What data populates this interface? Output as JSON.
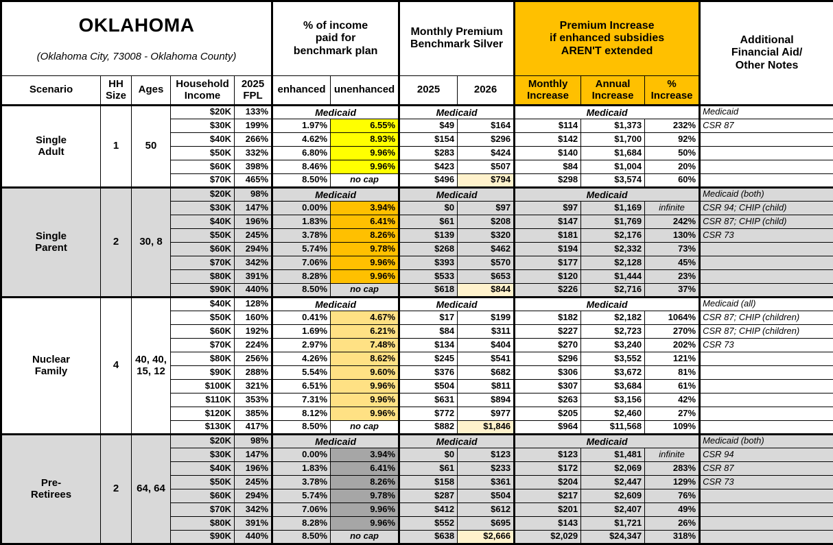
{
  "title_block": {
    "title": "OKLAHOMA",
    "subtitle": "(Oklahoma City, 73008 - Oklahoma County)"
  },
  "column_groups": {
    "income_pct": "% of income\npaid for\nbenchmark plan",
    "premium": "Monthly Premium\nBenchmark Silver",
    "increase": "Premium Increase\nif enhanced subsidies\nAREN'T extended",
    "notes": "Additional\nFinancial Aid/\nOther Notes"
  },
  "columns": {
    "scenario": "Scenario",
    "hh_size": "HH\nSize",
    "ages": "Ages",
    "income": "Household\nIncome",
    "fpl": "2025\nFPL",
    "enhanced": "enhanced",
    "unenhanced": "unenhanced",
    "y2025": "2025",
    "y2026": "2026",
    "monthly": "Monthly\nIncrease",
    "annual": "Annual\nIncrease",
    "pct": "%\nIncrease"
  },
  "medicaid_label": "Medicaid",
  "colors": {
    "accent_orange": "#FFC000",
    "highlight_yellow": "#FFFF00",
    "highlight_orange": "#FFC000",
    "highlight_amber": "#FFE184",
    "highlight_dark_gray": "#A6A6A6",
    "section_shade": "#D9D9D9",
    "cream_2026": "#FFF2CC"
  },
  "sections": [
    {
      "scenario": "Single\nAdult",
      "hh_size": "1",
      "ages": "50",
      "shaded": false,
      "highlight": "#FFFF00",
      "rows": [
        {
          "income": "$20K",
          "fpl": "133%",
          "medicaid": true,
          "note": "Medicaid"
        },
        {
          "income": "$30K",
          "fpl": "199%",
          "enh": "1.97%",
          "unenh": "6.55%",
          "p25": "$49",
          "p26": "$164",
          "mo": "$114",
          "yr": "$1,373",
          "pct": "232%",
          "note": "CSR 87"
        },
        {
          "income": "$40K",
          "fpl": "266%",
          "enh": "4.62%",
          "unenh": "8.93%",
          "p25": "$154",
          "p26": "$296",
          "mo": "$142",
          "yr": "$1,700",
          "pct": "92%",
          "note": ""
        },
        {
          "income": "$50K",
          "fpl": "332%",
          "enh": "6.80%",
          "unenh": "9.96%",
          "p25": "$283",
          "p26": "$424",
          "mo": "$140",
          "yr": "$1,684",
          "pct": "50%",
          "note": ""
        },
        {
          "income": "$60K",
          "fpl": "398%",
          "enh": "8.46%",
          "unenh": "9.96%",
          "p25": "$423",
          "p26": "$507",
          "mo": "$84",
          "yr": "$1,004",
          "pct": "20%",
          "note": ""
        },
        {
          "income": "$70K",
          "fpl": "465%",
          "enh": "8.50%",
          "unenh": "no cap",
          "nocap": true,
          "p25": "$496",
          "p26": "$794",
          "mo": "$298",
          "yr": "$3,574",
          "pct": "60%",
          "note": ""
        }
      ]
    },
    {
      "scenario": "Single\nParent",
      "hh_size": "2",
      "ages": "30, 8",
      "shaded": true,
      "highlight": "#FFC000",
      "rows": [
        {
          "income": "$20K",
          "fpl": "98%",
          "medicaid": true,
          "note": "Medicaid (both)"
        },
        {
          "income": "$30K",
          "fpl": "147%",
          "enh": "0.00%",
          "unenh": "3.94%",
          "p25": "$0",
          "p26": "$97",
          "mo": "$97",
          "yr": "$1,169",
          "pct": "infinite",
          "inf": true,
          "note": "CSR 94; CHIP (child)"
        },
        {
          "income": "$40K",
          "fpl": "196%",
          "enh": "1.83%",
          "unenh": "6.41%",
          "p25": "$61",
          "p26": "$208",
          "mo": "$147",
          "yr": "$1,769",
          "pct": "242%",
          "note": "CSR 87; CHIP (child)"
        },
        {
          "income": "$50K",
          "fpl": "245%",
          "enh": "3.78%",
          "unenh": "8.26%",
          "p25": "$139",
          "p26": "$320",
          "mo": "$181",
          "yr": "$2,176",
          "pct": "130%",
          "note": "CSR 73"
        },
        {
          "income": "$60K",
          "fpl": "294%",
          "enh": "5.74%",
          "unenh": "9.78%",
          "p25": "$268",
          "p26": "$462",
          "mo": "$194",
          "yr": "$2,332",
          "pct": "73%",
          "note": ""
        },
        {
          "income": "$70K",
          "fpl": "342%",
          "enh": "7.06%",
          "unenh": "9.96%",
          "p25": "$393",
          "p26": "$570",
          "mo": "$177",
          "yr": "$2,128",
          "pct": "45%",
          "note": ""
        },
        {
          "income": "$80K",
          "fpl": "391%",
          "enh": "8.28%",
          "unenh": "9.96%",
          "p25": "$533",
          "p26": "$653",
          "mo": "$120",
          "yr": "$1,444",
          "pct": "23%",
          "note": ""
        },
        {
          "income": "$90K",
          "fpl": "440%",
          "enh": "8.50%",
          "unenh": "no cap",
          "nocap": true,
          "p25": "$618",
          "p26": "$844",
          "mo": "$226",
          "yr": "$2,716",
          "pct": "37%",
          "note": ""
        }
      ]
    },
    {
      "scenario": "Nuclear\nFamily",
      "hh_size": "4",
      "ages": "40, 40,\n15, 12",
      "shaded": false,
      "highlight": "#FFE184",
      "rows": [
        {
          "income": "$40K",
          "fpl": "128%",
          "medicaid": true,
          "note": "Medicaid (all)"
        },
        {
          "income": "$50K",
          "fpl": "160%",
          "enh": "0.41%",
          "unenh": "4.67%",
          "p25": "$17",
          "p26": "$199",
          "mo": "$182",
          "yr": "$2,182",
          "pct": "1064%",
          "note": "CSR 87; CHIP (children)"
        },
        {
          "income": "$60K",
          "fpl": "192%",
          "enh": "1.69%",
          "unenh": "6.21%",
          "p25": "$84",
          "p26": "$311",
          "mo": "$227",
          "yr": "$2,723",
          "pct": "270%",
          "note": "CSR 87; CHIP (children)"
        },
        {
          "income": "$70K",
          "fpl": "224%",
          "enh": "2.97%",
          "unenh": "7.48%",
          "p25": "$134",
          "p26": "$404",
          "mo": "$270",
          "yr": "$3,240",
          "pct": "202%",
          "note": "CSR 73"
        },
        {
          "income": "$80K",
          "fpl": "256%",
          "enh": "4.26%",
          "unenh": "8.62%",
          "p25": "$245",
          "p26": "$541",
          "mo": "$296",
          "yr": "$3,552",
          "pct": "121%",
          "note": ""
        },
        {
          "income": "$90K",
          "fpl": "288%",
          "enh": "5.54%",
          "unenh": "9.60%",
          "p25": "$376",
          "p26": "$682",
          "mo": "$306",
          "yr": "$3,672",
          "pct": "81%",
          "note": ""
        },
        {
          "income": "$100K",
          "fpl": "321%",
          "enh": "6.51%",
          "unenh": "9.96%",
          "p25": "$504",
          "p26": "$811",
          "mo": "$307",
          "yr": "$3,684",
          "pct": "61%",
          "note": ""
        },
        {
          "income": "$110K",
          "fpl": "353%",
          "enh": "7.31%",
          "unenh": "9.96%",
          "p25": "$631",
          "p26": "$894",
          "mo": "$263",
          "yr": "$3,156",
          "pct": "42%",
          "note": ""
        },
        {
          "income": "$120K",
          "fpl": "385%",
          "enh": "8.12%",
          "unenh": "9.96%",
          "p25": "$772",
          "p26": "$977",
          "mo": "$205",
          "yr": "$2,460",
          "pct": "27%",
          "note": ""
        },
        {
          "income": "$130K",
          "fpl": "417%",
          "enh": "8.50%",
          "unenh": "no cap",
          "nocap": true,
          "p25": "$882",
          "p26": "$1,846",
          "mo": "$964",
          "yr": "$11,568",
          "pct": "109%",
          "note": ""
        }
      ]
    },
    {
      "scenario": "Pre-\nRetirees",
      "hh_size": "2",
      "ages": "64, 64",
      "shaded": true,
      "highlight": "#A6A6A6",
      "rows": [
        {
          "income": "$20K",
          "fpl": "98%",
          "medicaid": true,
          "note": "Medicaid (both)"
        },
        {
          "income": "$30K",
          "fpl": "147%",
          "enh": "0.00%",
          "unenh": "3.94%",
          "p25": "$0",
          "p26": "$123",
          "mo": "$123",
          "yr": "$1,481",
          "pct": "infinite",
          "inf": true,
          "note": "CSR 94"
        },
        {
          "income": "$40K",
          "fpl": "196%",
          "enh": "1.83%",
          "unenh": "6.41%",
          "p25": "$61",
          "p26": "$233",
          "mo": "$172",
          "yr": "$2,069",
          "pct": "283%",
          "note": "CSR 87"
        },
        {
          "income": "$50K",
          "fpl": "245%",
          "enh": "3.78%",
          "unenh": "8.26%",
          "p25": "$158",
          "p26": "$361",
          "mo": "$204",
          "yr": "$2,447",
          "pct": "129%",
          "note": "CSR 73"
        },
        {
          "income": "$60K",
          "fpl": "294%",
          "enh": "5.74%",
          "unenh": "9.78%",
          "p25": "$287",
          "p26": "$504",
          "mo": "$217",
          "yr": "$2,609",
          "pct": "76%",
          "note": ""
        },
        {
          "income": "$70K",
          "fpl": "342%",
          "enh": "7.06%",
          "unenh": "9.96%",
          "p25": "$412",
          "p26": "$612",
          "mo": "$201",
          "yr": "$2,407",
          "pct": "49%",
          "note": ""
        },
        {
          "income": "$80K",
          "fpl": "391%",
          "enh": "8.28%",
          "unenh": "9.96%",
          "p25": "$552",
          "p26": "$695",
          "mo": "$143",
          "yr": "$1,721",
          "pct": "26%",
          "note": ""
        },
        {
          "income": "$90K",
          "fpl": "440%",
          "enh": "8.50%",
          "unenh": "no cap",
          "nocap": true,
          "p25": "$638",
          "p26": "$2,666",
          "mo": "$2,029",
          "yr": "$24,347",
          "pct": "318%",
          "note": ""
        }
      ]
    }
  ]
}
